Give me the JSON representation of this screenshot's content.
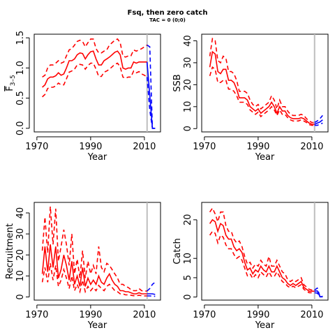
{
  "header": {
    "title": "Fsq, then zero catch",
    "subtitle": "TAC = 0 (0;0)"
  },
  "colors": {
    "historical": "#ff0000",
    "projection": "#0000ff",
    "divider": "#bebebe"
  },
  "chart_data": [
    {
      "type": "line",
      "id": "f",
      "xlabel": "Year",
      "ylabel_main": "F",
      "ylabel_sub": "3–5",
      "xlim": [
        1969,
        2016
      ],
      "ylim": [
        -0.06,
        1.56
      ],
      "xticks": [
        1970,
        1990,
        2010
      ],
      "yticks": [
        0.0,
        0.5,
        1.0,
        1.5
      ],
      "ytick_labels": [
        "0.0",
        "0.5",
        "1.0",
        "1.5"
      ],
      "divider_year": 2011,
      "x": [
        1972,
        1973,
        1974,
        1975,
        1976,
        1977,
        1978,
        1979,
        1980,
        1981,
        1982,
        1983,
        1984,
        1985,
        1986,
        1987,
        1988,
        1989,
        1990,
        1991,
        1992,
        1993,
        1994,
        1995,
        1996,
        1997,
        1998,
        1999,
        2000,
        2001,
        2002,
        2003,
        2004,
        2005,
        2006,
        2007,
        2008,
        2009,
        2010,
        2011
      ],
      "series": [
        {
          "role": "median",
          "values": [
            0.68,
            0.72,
            0.82,
            0.85,
            0.85,
            0.87,
            0.92,
            0.88,
            0.9,
            1.0,
            1.12,
            1.12,
            1.15,
            1.22,
            1.25,
            1.24,
            1.15,
            1.22,
            1.27,
            1.28,
            1.15,
            1.05,
            1.05,
            1.12,
            1.15,
            1.18,
            1.22,
            1.26,
            1.28,
            1.22,
            1.0,
            0.98,
            1.0,
            1.0,
            1.1,
            1.08,
            1.1,
            1.1,
            1.1,
            1.1
          ]
        },
        {
          "role": "upper",
          "values": [
            0.85,
            0.88,
            1.0,
            1.05,
            1.05,
            1.08,
            1.12,
            1.08,
            1.1,
            1.2,
            1.3,
            1.32,
            1.38,
            1.44,
            1.46,
            1.44,
            1.35,
            1.42,
            1.48,
            1.48,
            1.32,
            1.25,
            1.25,
            1.28,
            1.3,
            1.38,
            1.42,
            1.46,
            1.48,
            1.42,
            1.2,
            1.18,
            1.2,
            1.2,
            1.3,
            1.28,
            1.3,
            1.32,
            1.35,
            1.38
          ]
        },
        {
          "role": "lower",
          "values": [
            0.52,
            0.56,
            0.66,
            0.68,
            0.68,
            0.7,
            0.75,
            0.72,
            0.72,
            0.82,
            0.93,
            0.95,
            0.98,
            1.05,
            1.06,
            1.05,
            0.98,
            1.04,
            1.08,
            1.08,
            0.98,
            0.86,
            0.86,
            0.93,
            0.95,
            0.98,
            1.02,
            1.06,
            1.08,
            1.02,
            0.85,
            0.83,
            0.85,
            0.85,
            0.95,
            0.92,
            0.94,
            0.9,
            0.88,
            0.85
          ]
        }
      ],
      "projection": {
        "x": [
          2011,
          2012,
          2013,
          2014
        ],
        "median": [
          1.1,
          0.55,
          0.0,
          0.0
        ],
        "upper": [
          1.38,
          1.35,
          0.0,
          0.0
        ],
        "lower": [
          0.85,
          0.3,
          0.0,
          0.0
        ]
      }
    },
    {
      "type": "line",
      "id": "ssb",
      "xlabel": "Year",
      "ylabel_main": "SSB",
      "xlim": [
        1969,
        2016
      ],
      "ylim": [
        -1.5,
        43
      ],
      "xticks": [
        1970,
        1990,
        2010
      ],
      "yticks": [
        0,
        10,
        20,
        30,
        40
      ],
      "ytick_labels": [
        "0",
        "10",
        "20",
        "30",
        "40"
      ],
      "divider_year": 2011,
      "x": [
        1972,
        1973,
        1974,
        1975,
        1976,
        1977,
        1978,
        1979,
        1980,
        1981,
        1982,
        1983,
        1984,
        1985,
        1986,
        1987,
        1988,
        1989,
        1990,
        1991,
        1992,
        1993,
        1994,
        1995,
        1996,
        1997,
        1998,
        1999,
        2000,
        2001,
        2002,
        2003,
        2004,
        2005,
        2006,
        2007,
        2008,
        2009,
        2010,
        2011
      ],
      "series": [
        {
          "role": "median",
          "values": [
            28,
            35,
            34,
            26,
            25,
            27,
            27,
            22,
            22,
            21,
            18,
            14,
            14,
            14,
            13,
            10,
            9,
            8,
            9,
            7,
            8,
            9,
            10,
            12,
            10,
            7,
            10,
            8,
            8,
            6,
            5,
            4.5,
            4.5,
            4.5,
            5,
            4.5,
            3.5,
            2.5,
            2,
            2
          ]
        },
        {
          "role": "upper",
          "values": [
            33,
            41,
            40,
            31,
            30,
            33,
            32,
            26,
            26,
            25,
            22,
            17,
            17,
            17,
            16,
            13,
            11,
            10,
            11,
            9,
            10,
            11,
            12,
            15,
            13,
            9,
            13,
            10,
            10,
            8,
            6.5,
            6,
            6,
            6,
            6.5,
            6,
            4.5,
            3.5,
            2.8,
            2.8
          ]
        },
        {
          "role": "lower",
          "values": [
            24,
            28,
            27,
            21,
            21,
            22,
            22,
            18,
            18,
            17,
            15,
            12,
            12,
            12,
            11,
            8.5,
            7.5,
            6.5,
            7.5,
            5.5,
            6.5,
            7.5,
            8.5,
            10,
            8.5,
            6,
            8.5,
            6.5,
            6.5,
            5,
            4,
            3.5,
            3.5,
            3.5,
            4,
            3.5,
            2.8,
            1.8,
            1.5,
            1.5
          ]
        }
      ],
      "projection": {
        "x": [
          2011,
          2012,
          2013,
          2014
        ],
        "median": [
          2,
          2.5,
          3,
          4
        ],
        "upper": [
          2.8,
          3.5,
          4.5,
          6
        ],
        "lower": [
          1.5,
          1.5,
          2,
          2.5
        ]
      }
    },
    {
      "type": "line",
      "id": "recruitment",
      "xlabel": "Year",
      "ylabel_main": "Recruitment",
      "xlim": [
        1969,
        2016
      ],
      "ylim": [
        -1.5,
        45
      ],
      "xticks": [
        1970,
        1990,
        2010
      ],
      "yticks": [
        0,
        10,
        20,
        30,
        40
      ],
      "ytick_labels": [
        "0",
        "10",
        "20",
        "30",
        "40"
      ],
      "divider_year": 2011,
      "x": [
        1972,
        1973,
        1974,
        1975,
        1976,
        1977,
        1978,
        1979,
        1980,
        1981,
        1982,
        1983,
        1984,
        1985,
        1986,
        1987,
        1988,
        1989,
        1990,
        1991,
        1992,
        1993,
        1994,
        1995,
        1996,
        1997,
        1998,
        1999,
        2000,
        2001,
        2002,
        2003,
        2004,
        2005,
        2006,
        2007,
        2008,
        2009,
        2010,
        2011
      ],
      "series": [
        {
          "role": "median",
          "values": [
            11,
            24,
            12,
            25,
            14,
            24,
            9,
            13,
            20,
            15,
            8,
            17,
            6,
            10,
            5,
            14,
            5,
            9,
            6,
            8,
            6,
            10,
            7,
            6,
            9,
            11,
            8,
            6,
            5,
            3,
            3,
            2.5,
            2.5,
            2,
            1.5,
            1.5,
            2,
            1.5,
            1.5,
            1.5
          ]
        },
        {
          "role": "upper",
          "values": [
            22,
            38,
            21,
            43,
            25,
            42,
            17,
            24,
            32,
            25,
            15,
            30,
            11,
            18,
            9,
            22,
            9,
            17,
            11,
            15,
            11,
            24,
            14,
            12,
            16,
            15,
            13,
            11,
            9,
            6,
            6,
            5,
            4.5,
            3.5,
            3,
            3,
            4,
            3,
            2.8,
            2.8
          ]
        },
        {
          "role": "lower",
          "values": [
            7,
            14,
            7,
            16,
            8,
            15,
            5,
            8,
            13,
            9,
            4,
            10,
            3,
            6,
            2.5,
            8,
            2.5,
            5,
            3,
            4.5,
            3,
            5.5,
            4,
            3,
            5,
            6,
            4.5,
            3,
            2.5,
            1.5,
            1.5,
            1,
            1,
            0.8,
            0.6,
            0.6,
            0.8,
            0.6,
            0.5,
            0.5
          ]
        }
      ],
      "projection": {
        "x": [
          2011,
          2012,
          2013,
          2014
        ],
        "median": [
          1.5,
          1.5,
          1.5,
          1.2
        ],
        "upper": [
          2.8,
          4,
          6,
          7
        ],
        "lower": [
          0.5,
          0.5,
          0.4,
          0.3
        ]
      }
    },
    {
      "type": "line",
      "id": "catch",
      "xlabel": "Year",
      "ylabel_main": "Catch",
      "xlim": [
        1969,
        2016
      ],
      "ylim": [
        -0.8,
        24.5
      ],
      "xticks": [
        1970,
        1990,
        2010
      ],
      "yticks": [
        0,
        5,
        10,
        20
      ],
      "ytick_labels": [
        "0",
        "5",
        "10",
        "20"
      ],
      "divider_year": 2011,
      "x": [
        1972,
        1973,
        1974,
        1975,
        1976,
        1977,
        1978,
        1979,
        1980,
        1981,
        1982,
        1983,
        1984,
        1985,
        1986,
        1987,
        1988,
        1989,
        1990,
        1991,
        1992,
        1993,
        1994,
        1995,
        1996,
        1997,
        1998,
        1999,
        2000,
        2001,
        2002,
        2003,
        2004,
        2005,
        2006,
        2007,
        2008,
        2009,
        2010,
        2011
      ],
      "series": [
        {
          "role": "median",
          "values": [
            19,
            20,
            19.5,
            17,
            19,
            18.5,
            16,
            15,
            15,
            13,
            12,
            12.5,
            11.5,
            9,
            7,
            7.5,
            6,
            7,
            6.5,
            8,
            7,
            6.5,
            8,
            6.5,
            6.5,
            8,
            6.5,
            5,
            4.5,
            3.5,
            3,
            3.5,
            3,
            3.5,
            4,
            2.5,
            2,
            1.5,
            1.5,
            1.5
          ]
        },
        {
          "role": "upper",
          "values": [
            22,
            23,
            21.5,
            19.5,
            22,
            22,
            18.5,
            17,
            17,
            15,
            14,
            14.5,
            13,
            10.5,
            8.5,
            9,
            7.5,
            8.5,
            8,
            9.5,
            8.5,
            8,
            10.5,
            8,
            8,
            9.5,
            8,
            6.5,
            6,
            4.5,
            4,
            4.5,
            4,
            4.5,
            5,
            3.2,
            2.6,
            2,
            1.8,
            1.8
          ]
        },
        {
          "role": "lower",
          "values": [
            16,
            17,
            16.5,
            14,
            16,
            15.5,
            13.5,
            12.5,
            12.5,
            11,
            10,
            10.5,
            9.5,
            7.5,
            5.5,
            6,
            4.8,
            5.8,
            5,
            6.5,
            5.8,
            5.2,
            6.5,
            5.3,
            5.3,
            6.5,
            5.3,
            4,
            3.6,
            2.8,
            2.4,
            2.8,
            2.4,
            2.8,
            3.2,
            2,
            1.5,
            1.1,
            1.1,
            1.1
          ]
        }
      ],
      "projection": {
        "x": [
          2011,
          2012,
          2013,
          2014
        ],
        "median": [
          1.5,
          1.6,
          0.1,
          0.1
        ],
        "upper": [
          1.8,
          2.3,
          0.2,
          0.2
        ],
        "lower": [
          1.1,
          1.0,
          0.05,
          0.05
        ]
      }
    }
  ]
}
